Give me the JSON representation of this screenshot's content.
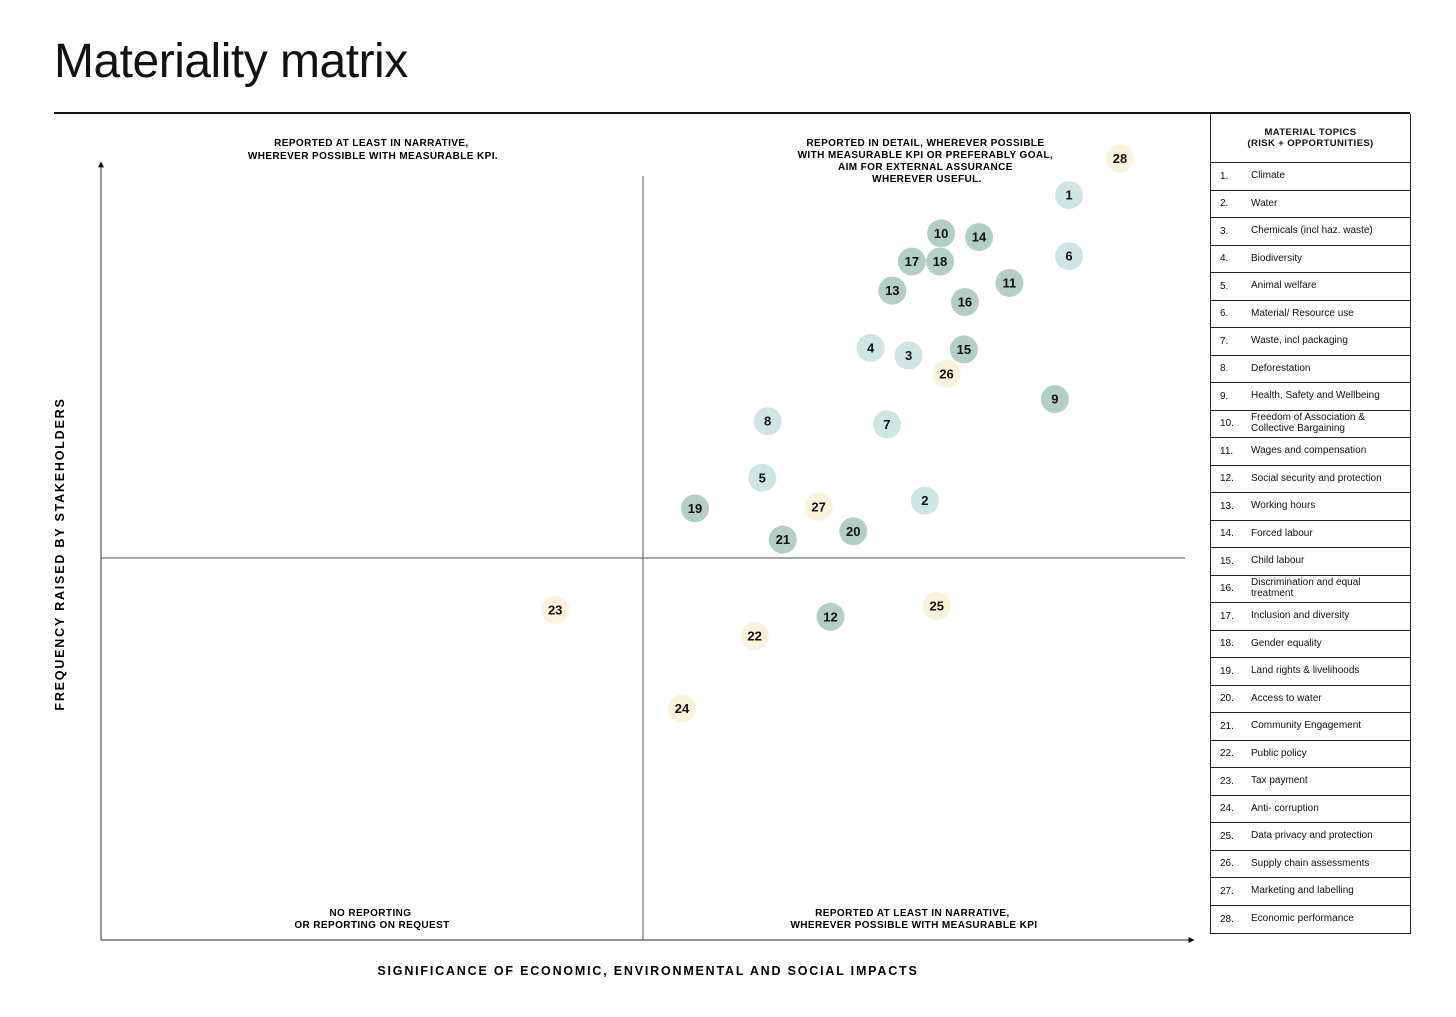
{
  "page": {
    "title": "Materiality matrix"
  },
  "colors": {
    "environment": "#cfe5e4",
    "social": "#b3cfc4",
    "governance": "#fbf2dc",
    "line": "#555555"
  },
  "chart_data": {
    "type": "scatter",
    "title": "Materiality matrix",
    "xlabel": "SIGNIFICANCE OF ECONOMIC, ENVIRONMENTAL AND SOCIAL IMPACTS",
    "ylabel": "FREQUENCY RAISED BY STAKEHOLDERS",
    "xlim": [
      0,
      100
    ],
    "ylim": [
      0,
      100
    ],
    "grid": false,
    "midlines": {
      "x": 50,
      "y": 50
    },
    "quadrants": {
      "top_left": [
        "REPORTED AT LEAST IN NARRATIVE,",
        "WHEREVER POSSIBLE WITH MEASURABLE KPI."
      ],
      "top_right": [
        "REPORTED IN DETAIL, WHEREVER POSSIBLE",
        "WITH MEASURABLE KPI OR PREFERABLY GOAL,",
        "AIM FOR EXTERNAL ASSURANCE",
        "WHEREVER USEFUL."
      ],
      "bottom_left": [
        "NO REPORTING",
        "OR REPORTING ON REQUEST"
      ],
      "bottom_right": [
        "REPORTED AT LEAST IN NARRATIVE,",
        "WHEREVER POSSIBLE WITH MEASURABLE KPI"
      ]
    },
    "points": [
      {
        "id": "1",
        "x": 89.3,
        "y": 97.5,
        "group": "environment"
      },
      {
        "id": "2",
        "x": 76.0,
        "y": 57.5,
        "group": "environment"
      },
      {
        "id": "3",
        "x": 74.5,
        "y": 76.5,
        "group": "environment"
      },
      {
        "id": "4",
        "x": 71.0,
        "y": 77.5,
        "group": "environment"
      },
      {
        "id": "5",
        "x": 61.0,
        "y": 60.5,
        "group": "environment"
      },
      {
        "id": "6",
        "x": 89.3,
        "y": 89.5,
        "group": "environment"
      },
      {
        "id": "7",
        "x": 72.5,
        "y": 67.5,
        "group": "environment"
      },
      {
        "id": "8",
        "x": 61.5,
        "y": 67.9,
        "group": "environment"
      },
      {
        "id": "9",
        "x": 88.0,
        "y": 70.8,
        "group": "social"
      },
      {
        "id": "10",
        "x": 77.5,
        "y": 92.5,
        "group": "social"
      },
      {
        "id": "11",
        "x": 83.8,
        "y": 86.0,
        "group": "social"
      },
      {
        "id": "12",
        "x": 67.3,
        "y": 42.3,
        "group": "social"
      },
      {
        "id": "13",
        "x": 73.0,
        "y": 85.0,
        "group": "social"
      },
      {
        "id": "14",
        "x": 81.0,
        "y": 92.0,
        "group": "social"
      },
      {
        "id": "15",
        "x": 79.6,
        "y": 77.3,
        "group": "social"
      },
      {
        "id": "16",
        "x": 79.7,
        "y": 83.5,
        "group": "social"
      },
      {
        "id": "17",
        "x": 74.8,
        "y": 88.8,
        "group": "social"
      },
      {
        "id": "18",
        "x": 77.4,
        "y": 88.8,
        "group": "social"
      },
      {
        "id": "19",
        "x": 54.8,
        "y": 56.5,
        "group": "social"
      },
      {
        "id": "20",
        "x": 69.4,
        "y": 53.5,
        "group": "social"
      },
      {
        "id": "21",
        "x": 62.9,
        "y": 52.4,
        "group": "social"
      },
      {
        "id": "22",
        "x": 60.3,
        "y": 39.8,
        "group": "governance"
      },
      {
        "id": "23",
        "x": 41.9,
        "y": 43.2,
        "group": "governance"
      },
      {
        "id": "24",
        "x": 53.6,
        "y": 30.3,
        "group": "governance"
      },
      {
        "id": "25",
        "x": 77.1,
        "y": 43.7,
        "group": "governance"
      },
      {
        "id": "26",
        "x": 78.0,
        "y": 74.1,
        "group": "governance"
      },
      {
        "id": "27",
        "x": 66.2,
        "y": 56.7,
        "group": "governance"
      },
      {
        "id": "28",
        "x": 94.0,
        "y": 102.3,
        "group": "governance"
      }
    ]
  },
  "legend": {
    "title_line1": "MATERIAL TOPICS",
    "title_line2": "(RISK + OPPORTUNITIES)",
    "items": [
      {
        "num": "1.",
        "label": "Climate"
      },
      {
        "num": "2.",
        "label": "Water"
      },
      {
        "num": "3.",
        "label": "Chemicals (incl haz. waste)"
      },
      {
        "num": "4.",
        "label": "Biodiversity"
      },
      {
        "num": "5.",
        "label": "Animal welfare"
      },
      {
        "num": "6.",
        "label": "Material/ Resource use"
      },
      {
        "num": "7.",
        "label": "Waste, incl packaging"
      },
      {
        "num": "8.",
        "label": "Deforestation"
      },
      {
        "num": "9.",
        "label": "Health, Safety and Wellbeing"
      },
      {
        "num": "10.",
        "label": "Freedom of Association & Collective Bargaining"
      },
      {
        "num": "11.",
        "label": "Wages and compensation"
      },
      {
        "num": "12.",
        "label": "Social security and protection"
      },
      {
        "num": "13.",
        "label": "Working hours"
      },
      {
        "num": "14.",
        "label": "Forced labour"
      },
      {
        "num": "15.",
        "label": "Child labour"
      },
      {
        "num": "16.",
        "label": "Discrimination and equal treatment"
      },
      {
        "num": "17.",
        "label": "Inclusion and diversity"
      },
      {
        "num": "18.",
        "label": "Gender equality"
      },
      {
        "num": "19.",
        "label": "Land  rights & livelihoods"
      },
      {
        "num": "20.",
        "label": "Access to water"
      },
      {
        "num": "21.",
        "label": "Community Engagement"
      },
      {
        "num": "22.",
        "label": "Public policy"
      },
      {
        "num": "23.",
        "label": "Tax payment"
      },
      {
        "num": "24.",
        "label": "Anti- corruption"
      },
      {
        "num": "25.",
        "label": "Data privacy and protection"
      },
      {
        "num": "26.",
        "label": "Supply chain assessments"
      },
      {
        "num": "27.",
        "label": "Marketing and labelling"
      },
      {
        "num": "28.",
        "label": "Economic performance"
      }
    ]
  }
}
